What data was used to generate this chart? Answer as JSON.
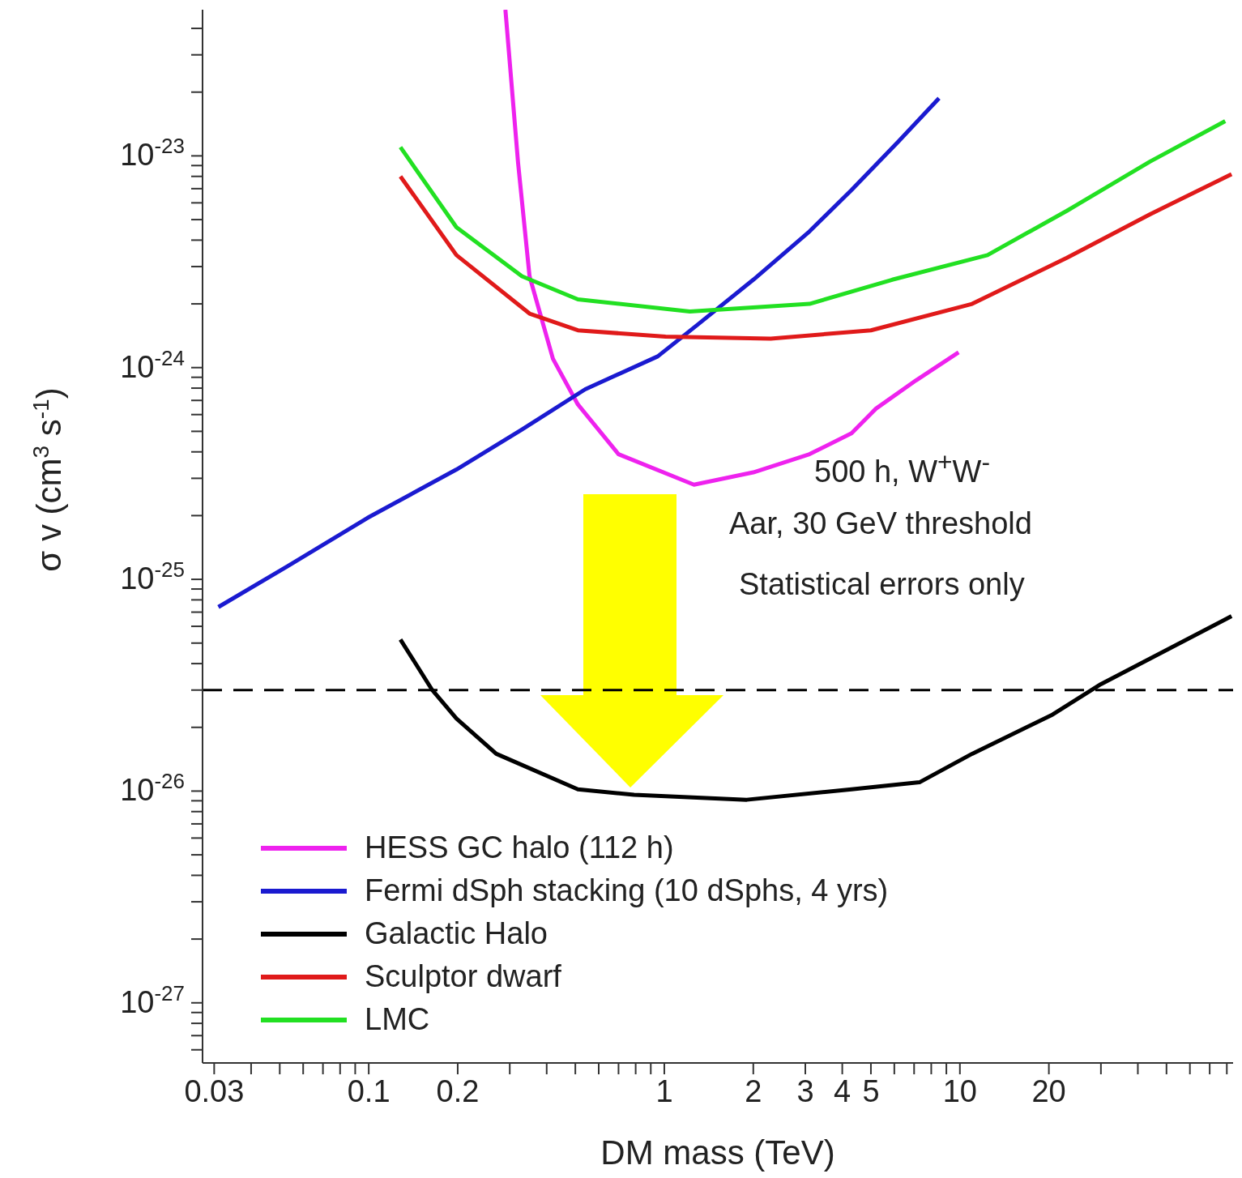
{
  "chart_data": {
    "type": "line",
    "xlabel": "DM mass (TeV)",
    "ylabel": "σ v (cm$^{3}$ s$^{-1}$)",
    "log": "xy",
    "legend": "bottom left",
    "marker": "none",
    "xlim": [
      0.0274,
      84
    ],
    "ylim": [
      5.2e-28,
      4.9e-23
    ],
    "xticks": [
      0.03,
      {
        "value": 0.04,
        "label": null
      },
      {
        "value": 0.05,
        "label": null
      },
      {
        "value": 0.06,
        "label": null
      },
      {
        "value": 0.07,
        "label": null
      },
      {
        "value": 0.08,
        "label": null
      },
      {
        "value": 0.09,
        "label": null
      },
      0.1,
      0.2,
      {
        "value": 0.3,
        "label": null
      },
      {
        "value": 0.4,
        "label": null
      },
      {
        "value": 0.5,
        "label": null
      },
      {
        "value": 0.6,
        "label": null
      },
      {
        "value": 0.7,
        "label": null
      },
      {
        "value": 0.8,
        "label": null
      },
      {
        "value": 0.9,
        "label": null
      },
      1,
      2,
      3,
      4,
      5,
      {
        "value": 6,
        "label": null
      },
      {
        "value": 7,
        "label": null
      },
      {
        "value": 8,
        "label": null
      },
      {
        "value": 9,
        "label": null
      },
      10,
      20,
      {
        "value": 30,
        "label": null
      },
      {
        "value": 40,
        "label": null
      },
      {
        "value": 50,
        "label": null
      },
      {
        "value": 60,
        "label": null
      },
      {
        "value": 70,
        "label": null
      },
      {
        "value": 80,
        "label": null
      }
    ],
    "yticks": [
      {
        "value": 6e-28,
        "label": null
      },
      {
        "value": 7e-28,
        "label": null
      },
      {
        "value": 8e-28,
        "label": null
      },
      {
        "value": 9e-28,
        "label": null
      },
      {
        "value": 1e-27,
        "label": "10$^{-27}$"
      },
      {
        "value": 2e-27,
        "label": null
      },
      {
        "value": 3e-27,
        "label": null
      },
      {
        "value": 4e-27,
        "label": null
      },
      {
        "value": 5e-27,
        "label": null
      },
      {
        "value": 6e-27,
        "label": null
      },
      {
        "value": 7e-27,
        "label": null
      },
      {
        "value": 8e-27,
        "label": null
      },
      {
        "value": 9e-27,
        "label": null
      },
      {
        "value": 1e-26,
        "label": "10$^{-26}$"
      },
      {
        "value": 2e-26,
        "label": null
      },
      {
        "value": 3e-26,
        "label": null
      },
      {
        "value": 4e-26,
        "label": null
      },
      {
        "value": 5e-26,
        "label": null
      },
      {
        "value": 6e-26,
        "label": null
      },
      {
        "value": 7e-26,
        "label": null
      },
      {
        "value": 8e-26,
        "label": null
      },
      {
        "value": 9e-26,
        "label": null
      },
      {
        "value": 1e-25,
        "label": "10$^{-25}$"
      },
      {
        "value": 2e-25,
        "label": null
      },
      {
        "value": 3e-25,
        "label": null
      },
      {
        "value": 4e-25,
        "label": null
      },
      {
        "value": 5e-25,
        "label": null
      },
      {
        "value": 6e-25,
        "label": null
      },
      {
        "value": 7e-25,
        "label": null
      },
      {
        "value": 8e-25,
        "label": null
      },
      {
        "value": 9e-25,
        "label": null
      },
      {
        "value": 1e-24,
        "label": "10$^{-24}$"
      },
      {
        "value": 2e-24,
        "label": null
      },
      {
        "value": 3e-24,
        "label": null
      },
      {
        "value": 4e-24,
        "label": null
      },
      {
        "value": 5e-24,
        "label": null
      },
      {
        "value": 6e-24,
        "label": null
      },
      {
        "value": 7e-24,
        "label": null
      },
      {
        "value": 8e-24,
        "label": null
      },
      {
        "value": 9e-24,
        "label": null
      },
      {
        "value": 1e-23,
        "label": "10$^{-23}$"
      },
      {
        "value": 2e-23,
        "label": null
      },
      {
        "value": 3e-23,
        "label": null
      },
      {
        "value": 4e-23,
        "label": null
      }
    ],
    "series": [
      {
        "name": "HESS GC halo (112 h)",
        "color": "#ee22ee",
        "x": [
          0.29,
          0.32,
          0.35,
          0.42,
          0.51,
          0.7,
          1.26,
          2.0,
          3.1,
          4.3,
          5.2,
          7.1,
          9.9
        ],
        "values": [
          4.9e-23,
          9.3e-24,
          2.7e-24,
          1.1e-24,
          6.7e-25,
          3.9e-25,
          2.8e-25,
          3.2e-25,
          3.9e-25,
          4.9e-25,
          6.4e-25,
          8.7e-25,
          1.18e-24
        ]
      },
      {
        "name": "Fermi dSph stacking (10 dSphs, 4 yrs)",
        "color": "#1a1ad0",
        "x": [
          0.031,
          0.053,
          0.099,
          0.198,
          0.33,
          0.54,
          0.95,
          1.3,
          2.0,
          3.1,
          4.3,
          6.2,
          8.5
        ],
        "values": [
          7.4e-26,
          1.15e-25,
          1.95e-25,
          3.3e-25,
          5.1e-25,
          7.9e-25,
          1.13e-24,
          1.6e-24,
          2.6e-24,
          4.4e-24,
          6.9e-24,
          1.17e-23,
          1.87e-23
        ]
      },
      {
        "name": "Galactic Halo",
        "color": "#000000",
        "x": [
          0.128,
          0.164,
          0.198,
          0.27,
          0.51,
          0.79,
          1.9,
          4.3,
          7.3,
          11,
          20.6,
          30,
          83
        ],
        "values": [
          5.2e-26,
          3e-26,
          2.2e-26,
          1.5e-26,
          1.02e-26,
          9.6e-27,
          9.1e-27,
          1.02e-26,
          1.1e-26,
          1.5e-26,
          2.3e-26,
          3.2e-26,
          6.7e-26
        ]
      },
      {
        "name": "Sculptor dwarf",
        "color": "#e01a1a",
        "x": [
          0.128,
          0.198,
          0.35,
          0.51,
          1.01,
          2.29,
          5.0,
          11,
          23,
          44,
          83
        ],
        "values": [
          8e-24,
          3.4e-24,
          1.8e-24,
          1.5e-24,
          1.4e-24,
          1.37e-24,
          1.5e-24,
          2e-24,
          3.3e-24,
          5.3e-24,
          8.2e-24
        ]
      },
      {
        "name": "LMC",
        "color": "#22e022",
        "x": [
          0.128,
          0.198,
          0.33,
          0.51,
          1.22,
          3.1,
          5.9,
          12.4,
          23,
          44,
          79
        ],
        "values": [
          1.1e-23,
          4.6e-24,
          2.7e-24,
          2.1e-24,
          1.84e-24,
          2e-24,
          2.6e-24,
          3.4e-24,
          5.5e-24,
          9.4e-24,
          1.46e-23
        ]
      }
    ],
    "ref_lines": [
      {
        "axis": "y",
        "value": 3e-26,
        "color": "#000000",
        "line_style": "dashed"
      }
    ],
    "annotations": [
      "500 h, W$^{+}$W$^{-}$",
      "Aar, 30 GeV threshold",
      "Statistical errors only"
    ]
  }
}
